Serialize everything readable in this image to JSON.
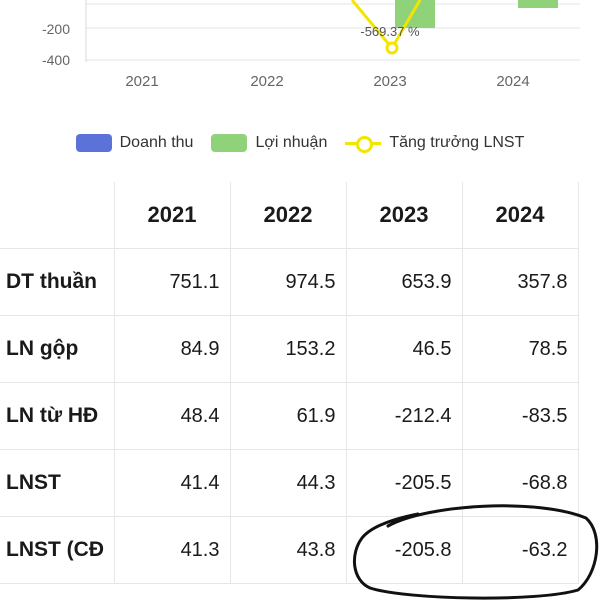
{
  "chart": {
    "y_ticks": [
      "-200",
      "-400"
    ],
    "x_labels": [
      "2021",
      "2022",
      "2023",
      "2024"
    ],
    "annotation": "-569.37 %",
    "colors": {
      "revenue": "#5b72d8",
      "profit": "#8fd27a",
      "growth": "#f2e600",
      "grid": "#e6e6e6",
      "axis_text": "#666666"
    }
  },
  "legend": {
    "items": [
      {
        "label": "Doanh thu",
        "type": "box",
        "color": "#5b72d8"
      },
      {
        "label": "Lợi nhuận",
        "type": "box",
        "color": "#8fd27a"
      },
      {
        "label": "Tăng trưởng LNST",
        "type": "line",
        "color": "#f2e600"
      }
    ]
  },
  "table": {
    "corner": "",
    "years": [
      "2021",
      "2022",
      "2023",
      "2024"
    ],
    "rows": [
      {
        "label": "DT thuần",
        "values": [
          "751.1",
          "974.5",
          "653.9",
          "357.8"
        ]
      },
      {
        "label": "LN gộp",
        "values": [
          "84.9",
          "153.2",
          "46.5",
          "78.5"
        ]
      },
      {
        "label": "LN từ HĐ",
        "values": [
          "48.4",
          "61.9",
          "-212.4",
          "-83.5"
        ]
      },
      {
        "label": "LNST",
        "values": [
          "41.4",
          "44.3",
          "-205.5",
          "-68.8"
        ]
      },
      {
        "label": "LNST (CĐ",
        "values": [
          "41.3",
          "43.8",
          "-205.8",
          "-63.2"
        ]
      }
    ]
  }
}
